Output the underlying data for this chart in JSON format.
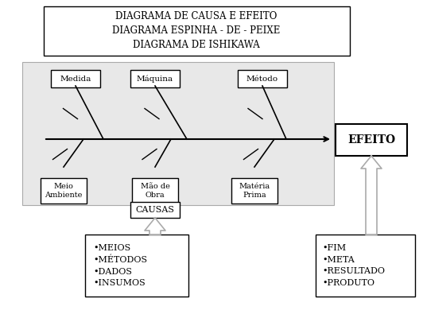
{
  "title_lines": [
    "DIAGRAMA DE CAUSA E EFEITO",
    "DIAGRAMA ESPINHA - DE - PEIXE",
    "DIAGRAMA DE ISHIKAWA"
  ],
  "top_boxes": [
    "Medida",
    "Máquina",
    "Método"
  ],
  "bottom_boxes_labels": [
    "Meio\nAmbiente",
    "Mão de\nObra",
    "Matéria\nPrima"
  ],
  "effect_label": "EFEITO",
  "causas_label": "CAUSAS",
  "left_bullet_lines": [
    "•MEIOS",
    "•MÉTODOS",
    "•DADOS",
    "•INSUMOS"
  ],
  "right_bullet_lines": [
    "•FIM",
    "•META",
    "•RESULTADO",
    "•PRODUTO"
  ],
  "bg_color": "#e8e8e8",
  "box_color": "#ffffff",
  "text_color": "#000000",
  "arrow_fill": "#ffffff",
  "arrow_edge": "#aaaaaa"
}
